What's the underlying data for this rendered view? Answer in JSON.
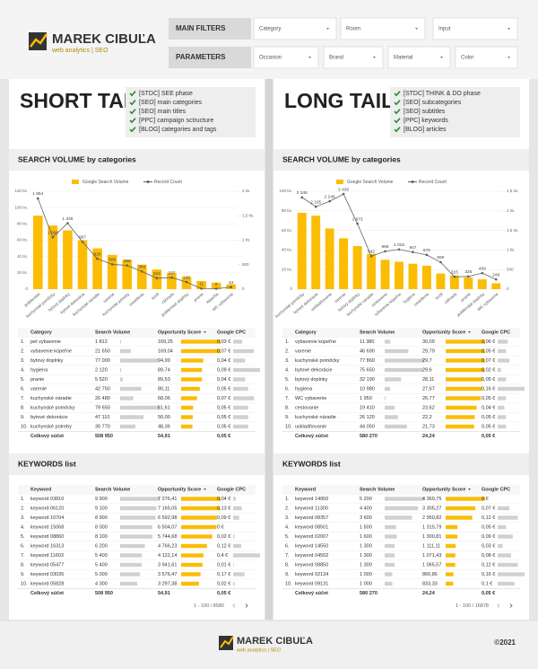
{
  "header": {
    "brand": "MAREK CIBUĽA",
    "tagline": "web analytics | SEO",
    "filters": [
      {
        "label": "MAIN FILTERS",
        "options": [
          "Category",
          "Room",
          "Input"
        ]
      },
      {
        "label": "PARAMETERS",
        "options": [
          "Occasion",
          "Brand",
          "Material",
          "Color"
        ]
      }
    ]
  },
  "panels": [
    {
      "title": "SHORT TAIL",
      "checklist": [
        "[STDC] SEE phase",
        "[SEO] main categories",
        "[SEO] main titles",
        "[PPC] campaign sctructure",
        "[BLOG] categories and tags"
      ],
      "chart_title": "SEARCH VOLUME by categories",
      "chart_data": {
        "type": "combo",
        "categories": [
          "jedálenské",
          "kuchynské pomôcky",
          "bytový doplnky",
          "bytové dekorácie",
          "kuchynské náradie",
          "varenie",
          "kuchynské potreby",
          "osvetlenie",
          "textil",
          "záhrada",
          "jedálenské doplnky",
          "pranie",
          "kúpeľňa",
          "WC vybavenie"
        ],
        "series": [
          {
            "name": "Google Search Volume",
            "type": "bar",
            "color": "#fbbc04",
            "values": [
              90000,
              78000,
              72000,
              60000,
              50000,
              42000,
              36000,
              30000,
              24000,
              20000,
              15000,
              10000,
              8000,
              6000
            ]
          },
          {
            "name": "Record Count",
            "type": "line",
            "color": "#616161",
            "axis": "y2",
            "values": [
              1854,
              1060,
              1348,
              967,
              620,
              506,
              486,
              360,
              224,
              237,
              145,
              11,
              9,
              42
            ],
            "value_labels": [
              "1 854",
              "1 060",
              "1 348",
              "967",
              "620",
              "506",
              "486",
              "360",
              "224",
              "237",
              "145",
              "11",
              "9",
              "42"
            ]
          }
        ],
        "ylim": [
          0,
          120000
        ],
        "yticks": [
          0,
          {
            "value": 20000,
            "label": "20 tis."
          },
          {
            "value": 40000,
            "label": "40 tis."
          },
          {
            "value": 60000,
            "label": "60 tis."
          },
          {
            "value": 80000,
            "label": "80 tis."
          },
          {
            "value": 100000,
            "label": "100 tis."
          },
          {
            "value": 120000,
            "label": "120 tis."
          }
        ],
        "y2lim": [
          0,
          2000
        ],
        "y2ticks": [
          0,
          500,
          {
            "value": 1000,
            "label": "1 tis."
          },
          {
            "value": 1500,
            "label": "1,5 tis."
          },
          {
            "value": 2000,
            "label": "2 tis."
          }
        ],
        "grid": true
      },
      "table": {
        "columns": [
          "Category",
          "Search Volume",
          "Opportunity Score",
          "Google CPC"
        ],
        "rows": [
          [
            "1.",
            "pet vybavenie",
            "1 812",
            "169,25",
            "0,03 €"
          ],
          [
            "2.",
            "vybavenie kúpeľne",
            "21 650",
            "169,04",
            "0,07 €"
          ],
          [
            "3.",
            "bytový doplnky",
            "77 000",
            "94,99",
            "0,04 €"
          ],
          [
            "4.",
            "hygiena",
            "2 120",
            "89,74",
            "0,09 €"
          ],
          [
            "5.",
            "pranie",
            "5 520",
            "89,53",
            "0,04 €"
          ],
          [
            "6.",
            "varenie",
            "42 750",
            "80,11",
            "0,05 €"
          ],
          [
            "7.",
            "kuchynské náradie",
            "26 480",
            "68,06",
            "0,07 €"
          ],
          [
            "8.",
            "kuchynské pomôcky",
            "79 650",
            "51,61",
            "0,05 €"
          ],
          [
            "9.",
            "bytové dekorácie",
            "47 110",
            "50,00",
            "0,05 €"
          ],
          [
            "10.",
            "kuchynské potreby",
            "30 770",
            "48,36",
            "0,05 €"
          ]
        ],
        "total": [
          "Celkový súčet",
          "508 950",
          "54,91",
          "0,05 €"
        ]
      },
      "keywords_title": "KEYWORDS list",
      "keywords": {
        "columns": [
          "Keyword",
          "Search Volume",
          "Opportunity Score",
          "Google CPC"
        ],
        "rows": [
          [
            "1.",
            "keyword 03810",
            "9 900",
            "7 276,41",
            "0,04 €"
          ],
          [
            "2.",
            "keyword 06120",
            "9 100",
            "7 165,05",
            "0,13 €"
          ],
          [
            "3.",
            "keyword 10704",
            "8 900",
            "6 592,98",
            "0,09 €"
          ],
          [
            "4.",
            "keyword 15068",
            "8 000",
            "6 504,07",
            "0 €"
          ],
          [
            "5.",
            "keyword 08860",
            "8 100",
            "5 744,68",
            "0,02 €"
          ],
          [
            "6.",
            "keyword 16313",
            "6 200",
            "4 766,23",
            "0,12 €"
          ],
          [
            "7.",
            "keyword 11603",
            "5 400",
            "4 122,14",
            "0,4 €"
          ],
          [
            "8.",
            "keyword 05477",
            "5 400",
            "3 941,61",
            "0,01 €"
          ],
          [
            "9.",
            "keyword 03035",
            "5 000",
            "3 576,47",
            "0,17 €"
          ],
          [
            "10.",
            "keyword 05828",
            "4 300",
            "3 297,38",
            "0,02 €"
          ]
        ],
        "total": [
          "Celkový súčet",
          "508 950",
          "54,91",
          "0,05 €"
        ],
        "pager": "1 - 100 / 8580"
      }
    },
    {
      "title": "LONG TAIL",
      "checklist": [
        "[STDC] THINK & DO phase",
        "[SEO] subcategories",
        "[SEO] subtitles",
        "[PPC] keywords",
        "[BLOG] articles"
      ],
      "chart_title": "SEARCH VOLUME by categories",
      "chart_data": {
        "type": "combo",
        "categories": [
          "kuchynské pomôcky",
          "bytové dekorácie",
          "uskladňovanie",
          "varenie",
          "bytový doplnky",
          "kuchynské náradie",
          "cestovanie",
          "vybavenie kúpeľne",
          "hygiena",
          "osvetlenie",
          "textil",
          "záhrada",
          "pranie",
          "jedálenské doplnky",
          "WC vybavenie"
        ],
        "series": [
          {
            "name": "Google Search Volume",
            "type": "bar",
            "color": "#fbbc04",
            "values": [
              78000,
              75000,
              62000,
              52000,
              44000,
              36000,
              30000,
              28000,
              26000,
              24000,
              16000,
              14000,
              12000,
              10000,
              6000
            ]
          },
          {
            "name": "Record Count",
            "type": "line",
            "color": "#616161",
            "axis": "y2",
            "values": [
              2345,
              2105,
              2246,
              2430,
              1673,
              842,
              966,
              1015,
              947,
              875,
              690,
              315,
              325,
              409,
              249
            ],
            "value_labels": [
              "2 345",
              "2 105",
              "2 246",
              "2 430",
              "1 673",
              "842",
              "966",
              "1 015",
              "947",
              "875",
              "690",
              "315",
              "325",
              "409",
              "249"
            ]
          }
        ],
        "ylim": [
          0,
          100000
        ],
        "yticks": [
          0,
          {
            "value": 20000,
            "label": "20 tis."
          },
          {
            "value": 40000,
            "label": "40 tis."
          },
          {
            "value": 60000,
            "label": "60 tis."
          },
          {
            "value": 80000,
            "label": "80 tis."
          },
          {
            "value": 100000,
            "label": "100 tis."
          }
        ],
        "y2lim": [
          0,
          2500
        ],
        "y2ticks": [
          0,
          500,
          {
            "value": 1000,
            "label": "1 tis."
          },
          {
            "value": 1500,
            "label": "1,5 tis."
          },
          {
            "value": 2000,
            "label": "2 tis."
          },
          {
            "value": 2500,
            "label": "2,5 tis."
          }
        ],
        "grid": true
      },
      "table": {
        "columns": [
          "Category",
          "Search Volume",
          "Opportunity Score",
          "Google CPC"
        ],
        "rows": [
          [
            "1.",
            "vybavenie kúpeľne",
            "11 380",
            "30,09",
            "0,06 €"
          ],
          [
            "2.",
            "varenie",
            "46 690",
            "29,79",
            "0,05 €"
          ],
          [
            "3.",
            "kuchynské pomôcky",
            "77 860",
            "29,7",
            "0,07 €"
          ],
          [
            "4.",
            "bytové dekorácie",
            "75 650",
            "29,6",
            "0,02 €"
          ],
          [
            "5.",
            "bytový doplnky",
            "32 190",
            "28,11",
            "0,05 €"
          ],
          [
            "6.",
            "hygiena",
            "10 980",
            "27,67",
            "0,16 €"
          ],
          [
            "7.",
            "WC vybavenie",
            "1 950",
            "26,77",
            "0,05 €"
          ],
          [
            "8.",
            "cestovanie",
            "19 410",
            "23,62",
            "0,04 €"
          ],
          [
            "9.",
            "kuchynské náradie",
            "26 120",
            "22,2",
            "0,05 €"
          ],
          [
            "10.",
            "uskladňovanie",
            "44 050",
            "21,73",
            "0,05 €"
          ]
        ],
        "total": [
          "Celkový súčet",
          "580 270",
          "24,24",
          "0,05 €"
        ]
      },
      "keywords_title": "KEYWORDS list",
      "keywords": {
        "columns": [
          "Keyword",
          "Search Volume",
          "Opportunity Score",
          "Google CPC"
        ],
        "rows": [
          [
            "1.",
            "keyword 14950",
            "5 200",
            "4 369,75",
            "0 €"
          ],
          [
            "2.",
            "keyword 11300",
            "4 400",
            "3 305,27",
            "0,07 €"
          ],
          [
            "3.",
            "keyword 08357",
            "3 600",
            "2 950,82",
            "0,12 €"
          ],
          [
            "4.",
            "keyword 08501",
            "1 500",
            "1 315,79",
            "0,05 €"
          ],
          [
            "5.",
            "keyword 02007",
            "1 600",
            "1 300,81",
            "0,09 €"
          ],
          [
            "6.",
            "keyword 14550",
            "1 300",
            "1 111,11",
            "0,03 €"
          ],
          [
            "7.",
            "keyword 04502",
            "1 300",
            "1 071,43",
            "0,08 €"
          ],
          [
            "8.",
            "keyword 08850",
            "1 300",
            "1 065,57",
            "0,12 €"
          ],
          [
            "9.",
            "keyword 02134",
            "1 000",
            "866,86",
            "0,16 €"
          ],
          [
            "10.",
            "keyword 09131",
            "1 000",
            "833,33",
            "0,1 €"
          ]
        ],
        "total": [
          "Celkový súčet",
          "580 270",
          "24,24",
          "0,05 €"
        ],
        "pager": "1 - 100 / 16878"
      }
    }
  ],
  "footer": {
    "brand": "MAREK CIBUĽA",
    "tagline": "web analytics | SEO",
    "copyright": "©2021"
  }
}
